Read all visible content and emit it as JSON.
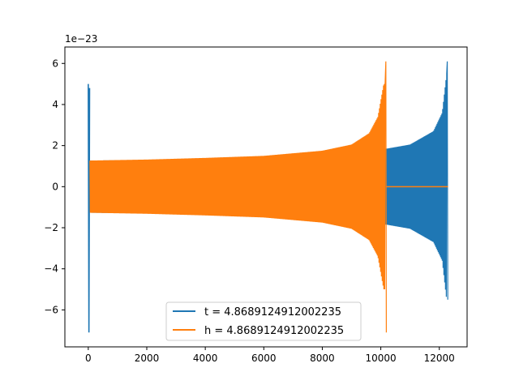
{
  "chart_data": {
    "type": "line",
    "title": "",
    "xlabel": "",
    "ylabel": "",
    "y_offset_label": "1e−23",
    "xlim": [
      -800,
      12950
    ],
    "ylim": [
      -7.8,
      6.8
    ],
    "x_ticks": [
      0,
      2000,
      4000,
      6000,
      8000,
      10000,
      12000
    ],
    "x_tick_labels": [
      "0",
      "2000",
      "4000",
      "6000",
      "8000",
      "10000",
      "12000"
    ],
    "y_ticks": [
      -6,
      -4,
      -2,
      0,
      2,
      4,
      6
    ],
    "y_tick_labels": [
      "−6",
      "−4",
      "−2",
      "0",
      "2",
      "4",
      "6"
    ],
    "grid": false,
    "legend_position": "lower center",
    "series": [
      {
        "name": "t = 4.8689124912002235",
        "color": "#1f77b4",
        "envelope": {
          "x_start": 0,
          "x_end": 12300,
          "initial_spike_max": 5.0,
          "initial_spike_min": -7.1,
          "upper": [
            [
              0,
              1.27
            ],
            [
              2000,
              1.3
            ],
            [
              4000,
              1.38
            ],
            [
              6000,
              1.48
            ],
            [
              8000,
              1.62
            ],
            [
              10200,
              1.85
            ],
            [
              11000,
              2.05
            ],
            [
              11800,
              2.7
            ],
            [
              12100,
              3.6
            ],
            [
              12250,
              5.5
            ]
          ],
          "lower": [
            [
              0,
              -1.27
            ],
            [
              2000,
              -1.3
            ],
            [
              4000,
              -1.38
            ],
            [
              6000,
              -1.48
            ],
            [
              8000,
              -1.62
            ],
            [
              10200,
              -1.85
            ],
            [
              11000,
              -2.05
            ],
            [
              11800,
              -2.7
            ],
            [
              12100,
              -3.6
            ],
            [
              12250,
              -5.5
            ]
          ],
          "peak_max": 6.1,
          "peak_min": -5.5,
          "tail_value": 0.0
        }
      },
      {
        "name": "h = 4.8689124912002235",
        "color": "#ff7f0e",
        "envelope": {
          "x_start": 0,
          "x_end": 10200,
          "upper": [
            [
              0,
              1.27
            ],
            [
              2000,
              1.32
            ],
            [
              4000,
              1.4
            ],
            [
              6000,
              1.5
            ],
            [
              8000,
              1.75
            ],
            [
              9000,
              2.05
            ],
            [
              9600,
              2.6
            ],
            [
              9900,
              3.4
            ],
            [
              10100,
              5.0
            ]
          ],
          "lower": [
            [
              0,
              -1.27
            ],
            [
              2000,
              -1.32
            ],
            [
              4000,
              -1.4
            ],
            [
              6000,
              -1.5
            ],
            [
              8000,
              -1.75
            ],
            [
              9000,
              -2.05
            ],
            [
              9600,
              -2.6
            ],
            [
              9900,
              -3.4
            ],
            [
              10100,
              -5.0
            ]
          ],
          "peak_max": 6.1,
          "peak_min": -7.1,
          "tail_value": 0.0,
          "tail_end": 12300
        }
      }
    ]
  }
}
